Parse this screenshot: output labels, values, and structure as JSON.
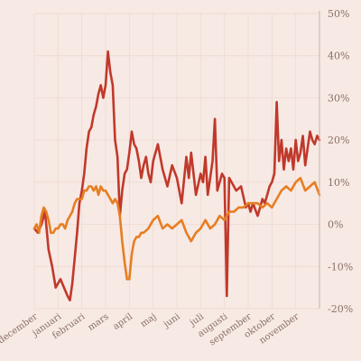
{
  "chart_data": {
    "type": "line",
    "title": "",
    "xlabel": "",
    "ylabel": "",
    "ylim": [
      -20,
      50
    ],
    "y_ticks": [
      50,
      40,
      30,
      20,
      10,
      0,
      -10,
      -20
    ],
    "y_tick_labels": [
      "50%",
      "40%",
      "30%",
      "20%",
      "10%",
      "0%",
      "-10%",
      "-20%"
    ],
    "x_range": [
      0,
      12
    ],
    "x_tick_positions": [
      0,
      1,
      2,
      3,
      4,
      5,
      6,
      7,
      8,
      9,
      10,
      11
    ],
    "x_tick_labels": [
      "december",
      "januari",
      "februari",
      "mars",
      "april",
      "maj",
      "juni",
      "juli",
      "augusti",
      "september",
      "oktober",
      "november"
    ],
    "grid": true,
    "legend": "none",
    "series": [
      {
        "color": "#c0392b",
        "x": [
          0,
          0.15,
          0.3,
          0.45,
          0.6,
          0.75,
          0.9,
          1.0,
          1.1,
          1.25,
          1.4,
          1.5,
          1.6,
          1.7,
          1.8,
          1.9,
          2.0,
          2.1,
          2.2,
          2.3,
          2.4,
          2.5,
          2.6,
          2.7,
          2.8,
          2.9,
          3.0,
          3.1,
          3.2,
          3.3,
          3.4,
          3.5,
          3.6,
          3.7,
          3.8,
          3.9,
          4.0,
          4.1,
          4.2,
          4.3,
          4.4,
          4.5,
          4.6,
          4.7,
          4.8,
          4.9,
          5.0,
          5.2,
          5.4,
          5.6,
          5.8,
          6.0,
          6.2,
          6.4,
          6.5,
          6.6,
          6.8,
          7.0,
          7.1,
          7.2,
          7.3,
          7.4,
          7.5,
          7.6,
          7.7,
          7.9,
          8.0,
          8.1,
          8.2,
          8.3,
          8.5,
          8.7,
          8.9,
          9.0,
          9.1,
          9.2,
          9.4,
          9.6,
          9.7,
          9.8,
          9.9,
          10.0,
          10.1,
          10.2,
          10.3,
          10.4,
          10.5,
          10.6,
          10.7,
          10.8,
          10.9,
          11.0,
          11.1,
          11.2,
          11.3,
          11.4,
          11.5,
          11.6,
          11.7,
          11.8,
          11.9,
          12.0
        ],
        "values": [
          -1,
          -2,
          0,
          3,
          -6,
          -10,
          -15,
          -14,
          -13,
          -15,
          -17,
          -18,
          -14,
          -8,
          -2,
          5,
          8,
          12,
          18,
          22,
          23,
          26,
          28,
          31,
          33,
          30,
          33,
          41,
          36,
          33,
          20,
          16,
          2,
          8,
          12,
          13,
          17,
          22,
          19,
          18,
          15,
          11,
          14,
          16,
          12,
          10,
          15,
          19,
          13,
          9,
          14,
          11,
          5,
          16,
          11,
          17,
          7,
          12,
          10,
          16,
          7,
          11,
          15,
          25,
          8,
          12,
          11,
          -17,
          11,
          10,
          8,
          9,
          4,
          5,
          3,
          5,
          2,
          6,
          5,
          7,
          9,
          10,
          12,
          29,
          15,
          20,
          13,
          18,
          15,
          18,
          13,
          20,
          15,
          17,
          21,
          14,
          18,
          22,
          20,
          19,
          21,
          20
        ]
      },
      {
        "color": "#e67e22",
        "x": [
          0,
          0.1,
          0.2,
          0.3,
          0.4,
          0.5,
          0.6,
          0.7,
          0.8,
          0.9,
          1.0,
          1.1,
          1.2,
          1.3,
          1.4,
          1.5,
          1.6,
          1.7,
          1.8,
          1.9,
          2.0,
          2.1,
          2.2,
          2.3,
          2.4,
          2.5,
          2.6,
          2.7,
          2.8,
          2.9,
          3.0,
          3.1,
          3.2,
          3.3,
          3.4,
          3.5,
          3.6,
          3.7,
          3.8,
          3.9,
          4.0,
          4.1,
          4.2,
          4.3,
          4.4,
          4.5,
          4.6,
          4.8,
          5.0,
          5.2,
          5.4,
          5.6,
          5.8,
          6.0,
          6.2,
          6.4,
          6.6,
          6.8,
          7.0,
          7.2,
          7.4,
          7.6,
          7.8,
          8.0,
          8.2,
          8.4,
          8.6,
          8.8,
          9.0,
          9.2,
          9.4,
          9.6,
          9.8,
          10.0,
          10.2,
          10.4,
          10.6,
          10.8,
          11.0,
          11.2,
          11.4,
          11.6,
          11.8,
          12.0
        ],
        "values": [
          -1,
          0,
          -2,
          2,
          4,
          3,
          1,
          -2,
          -2,
          -1,
          -1,
          0,
          0,
          -1,
          1,
          2,
          3,
          5,
          6,
          6,
          6,
          8,
          8,
          9,
          9,
          8,
          9,
          7,
          9,
          8,
          8,
          7,
          6,
          5,
          6,
          5,
          2,
          -4,
          -9,
          -13,
          -13,
          -7,
          -4,
          -3,
          -3,
          -2,
          -2,
          -1,
          1,
          2,
          -1,
          0,
          -1,
          0,
          1,
          -2,
          -4,
          -2,
          -1,
          1,
          -1,
          0,
          2,
          1,
          3,
          3,
          4,
          4,
          5,
          5,
          5,
          4,
          5,
          4,
          6,
          8,
          9,
          8,
          10,
          11,
          8,
          9,
          10,
          7
        ]
      }
    ]
  }
}
